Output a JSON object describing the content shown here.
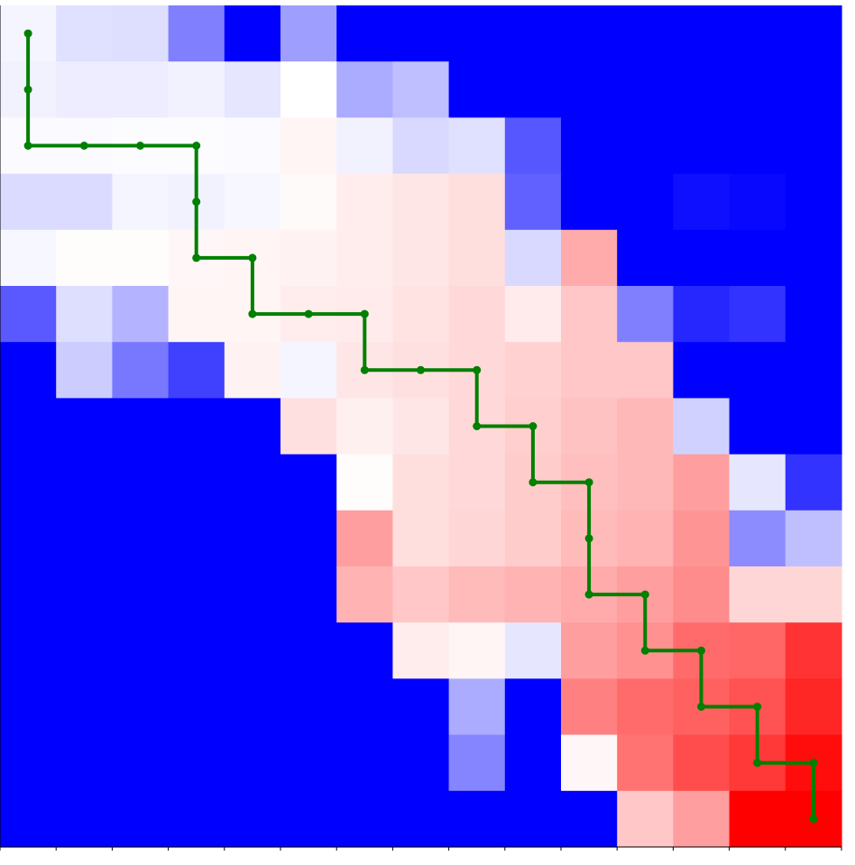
{
  "chart_data": {
    "type": "heatmap",
    "title": "",
    "xlabel": "",
    "ylabel": "",
    "rows": 15,
    "cols": 15,
    "colormap": "bwr",
    "vmin": -1,
    "vmax": 1,
    "colors": {
      "low": "#0000ff",
      "mid": "#ffffff",
      "high": "#ff0000",
      "path": "#008000"
    },
    "values": [
      [
        -0.04,
        -0.12,
        -0.13,
        -0.5,
        -1.0,
        -0.38,
        -1.0,
        -1.0,
        -1.0,
        -1.0,
        -1.0,
        -1.0,
        -1.0,
        -1.0,
        -1.0
      ],
      [
        -0.05,
        -0.07,
        -0.07,
        -0.05,
        -0.1,
        0.0,
        -0.33,
        -0.25,
        -1.0,
        -1.0,
        -1.0,
        -1.0,
        -1.0,
        -1.0,
        -1.0
      ],
      [
        -0.02,
        -0.02,
        -0.01,
        -0.01,
        -0.02,
        0.04,
        -0.05,
        -0.15,
        -0.12,
        -0.66,
        -1.0,
        -1.0,
        -1.0,
        -1.0,
        -1.0
      ],
      [
        -0.14,
        -0.14,
        -0.04,
        -0.05,
        -0.03,
        0.02,
        0.07,
        0.1,
        0.13,
        -0.62,
        -1.0,
        -1.0,
        -0.94,
        -0.97,
        -1.0
      ],
      [
        -0.03,
        0.01,
        0.01,
        0.03,
        0.04,
        0.05,
        0.07,
        0.1,
        0.13,
        -0.15,
        0.33,
        -1.0,
        -1.0,
        -1.0,
        -1.0
      ],
      [
        -0.65,
        -0.13,
        -0.3,
        0.04,
        0.04,
        0.07,
        0.08,
        0.11,
        0.15,
        0.08,
        0.22,
        -0.5,
        -0.85,
        -0.8,
        -1.0
      ],
      [
        -1.0,
        -0.2,
        -0.53,
        -0.75,
        0.05,
        -0.04,
        0.1,
        0.12,
        0.15,
        0.18,
        0.22,
        0.22,
        -1.0,
        -1.0,
        -1.0
      ],
      [
        -1.0,
        -1.0,
        -1.0,
        -1.0,
        -1.0,
        0.12,
        0.06,
        0.1,
        0.15,
        0.19,
        0.24,
        0.28,
        -0.18,
        -1.0,
        -1.0
      ],
      [
        -1.0,
        -1.0,
        -1.0,
        -1.0,
        -1.0,
        -1.0,
        0.01,
        0.13,
        0.15,
        0.2,
        0.25,
        0.28,
        0.38,
        -0.1,
        -0.8
      ],
      [
        -1.0,
        -1.0,
        -1.0,
        -1.0,
        -1.0,
        -1.0,
        0.38,
        0.13,
        0.16,
        0.2,
        0.27,
        0.3,
        0.42,
        -0.45,
        -0.25
      ],
      [
        -1.0,
        -1.0,
        -1.0,
        -1.0,
        -1.0,
        -1.0,
        0.3,
        0.22,
        0.27,
        0.3,
        0.33,
        0.38,
        0.45,
        0.16,
        0.16
      ],
      [
        -1.0,
        -1.0,
        -1.0,
        -1.0,
        -1.0,
        -1.0,
        -1.0,
        0.07,
        0.04,
        -0.1,
        0.38,
        0.43,
        0.58,
        0.6,
        0.8
      ],
      [
        -1.0,
        -1.0,
        -1.0,
        -1.0,
        -1.0,
        -1.0,
        -1.0,
        -1.0,
        -0.33,
        -1.0,
        0.5,
        0.58,
        0.62,
        0.68,
        0.85
      ],
      [
        -1.0,
        -1.0,
        -1.0,
        -1.0,
        -1.0,
        -1.0,
        -1.0,
        -1.0,
        -0.48,
        -1.0,
        0.03,
        0.55,
        0.7,
        0.78,
        0.95
      ],
      [
        -1.0,
        -1.0,
        -1.0,
        -1.0,
        -1.0,
        -1.0,
        -1.0,
        -1.0,
        -1.0,
        -1.0,
        -1.0,
        0.22,
        0.38,
        1.0,
        1.0
      ]
    ],
    "path": [
      [
        0,
        0
      ],
      [
        1,
        0
      ],
      [
        2,
        0
      ],
      [
        2,
        1
      ],
      [
        2,
        2
      ],
      [
        2,
        3
      ],
      [
        3,
        3
      ],
      [
        4,
        3
      ],
      [
        4,
        4
      ],
      [
        5,
        4
      ],
      [
        5,
        5
      ],
      [
        5,
        6
      ],
      [
        6,
        6
      ],
      [
        6,
        7
      ],
      [
        6,
        8
      ],
      [
        7,
        8
      ],
      [
        7,
        9
      ],
      [
        8,
        9
      ],
      [
        8,
        10
      ],
      [
        9,
        10
      ],
      [
        10,
        10
      ],
      [
        10,
        11
      ],
      [
        11,
        11
      ],
      [
        11,
        12
      ],
      [
        12,
        12
      ],
      [
        12,
        13
      ],
      [
        13,
        13
      ],
      [
        13,
        14
      ],
      [
        14,
        14
      ]
    ]
  }
}
